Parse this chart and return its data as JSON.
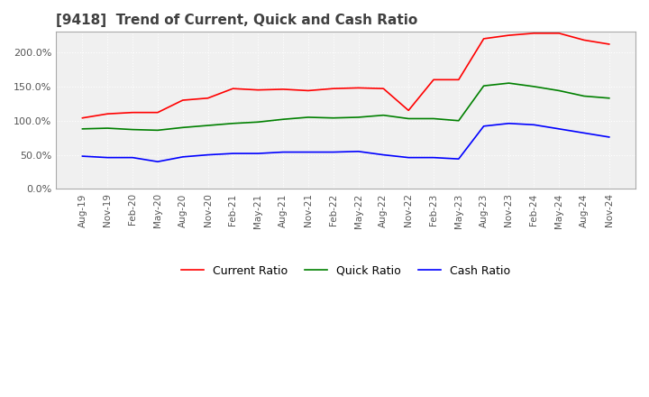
{
  "title": "[9418]  Trend of Current, Quick and Cash Ratio",
  "title_fontsize": 11,
  "legend_labels": [
    "Current Ratio",
    "Quick Ratio",
    "Cash Ratio"
  ],
  "legend_colors": [
    "#ff0000",
    "#008000",
    "#0000ff"
  ],
  "background_color": "#ffffff",
  "plot_bg_color": "#f0f0f0",
  "grid_color": "#ffffff",
  "x_labels": [
    "Aug-19",
    "Nov-19",
    "Feb-20",
    "May-20",
    "Aug-20",
    "Nov-20",
    "Feb-21",
    "May-21",
    "Aug-21",
    "Nov-21",
    "Feb-22",
    "May-22",
    "Aug-22",
    "Nov-22",
    "Feb-23",
    "May-23",
    "Aug-23",
    "Nov-23",
    "Feb-24",
    "May-24",
    "Aug-24",
    "Nov-24"
  ],
  "current_ratio": [
    1.04,
    1.1,
    1.12,
    1.12,
    1.3,
    1.33,
    1.47,
    1.45,
    1.46,
    1.44,
    1.47,
    1.48,
    1.47,
    1.15,
    1.6,
    1.6,
    2.2,
    2.25,
    2.28,
    2.28,
    2.18,
    2.12
  ],
  "quick_ratio": [
    0.88,
    0.89,
    0.87,
    0.86,
    0.9,
    0.93,
    0.96,
    0.98,
    1.02,
    1.05,
    1.04,
    1.05,
    1.08,
    1.03,
    1.03,
    1.0,
    1.51,
    1.55,
    1.5,
    1.44,
    1.36,
    1.33
  ],
  "cash_ratio": [
    0.48,
    0.46,
    0.46,
    0.4,
    0.47,
    0.5,
    0.52,
    0.52,
    0.54,
    0.54,
    0.54,
    0.55,
    0.5,
    0.46,
    0.46,
    0.44,
    0.92,
    0.96,
    0.94,
    0.88,
    0.82,
    0.76
  ],
  "ylim": [
    0.0,
    2.3
  ],
  "yticks": [
    0.0,
    0.5,
    1.0,
    1.5,
    2.0
  ],
  "yticklabels": [
    "0.0%",
    "50.0%",
    "100.0%",
    "150.0%",
    "200.0%"
  ]
}
